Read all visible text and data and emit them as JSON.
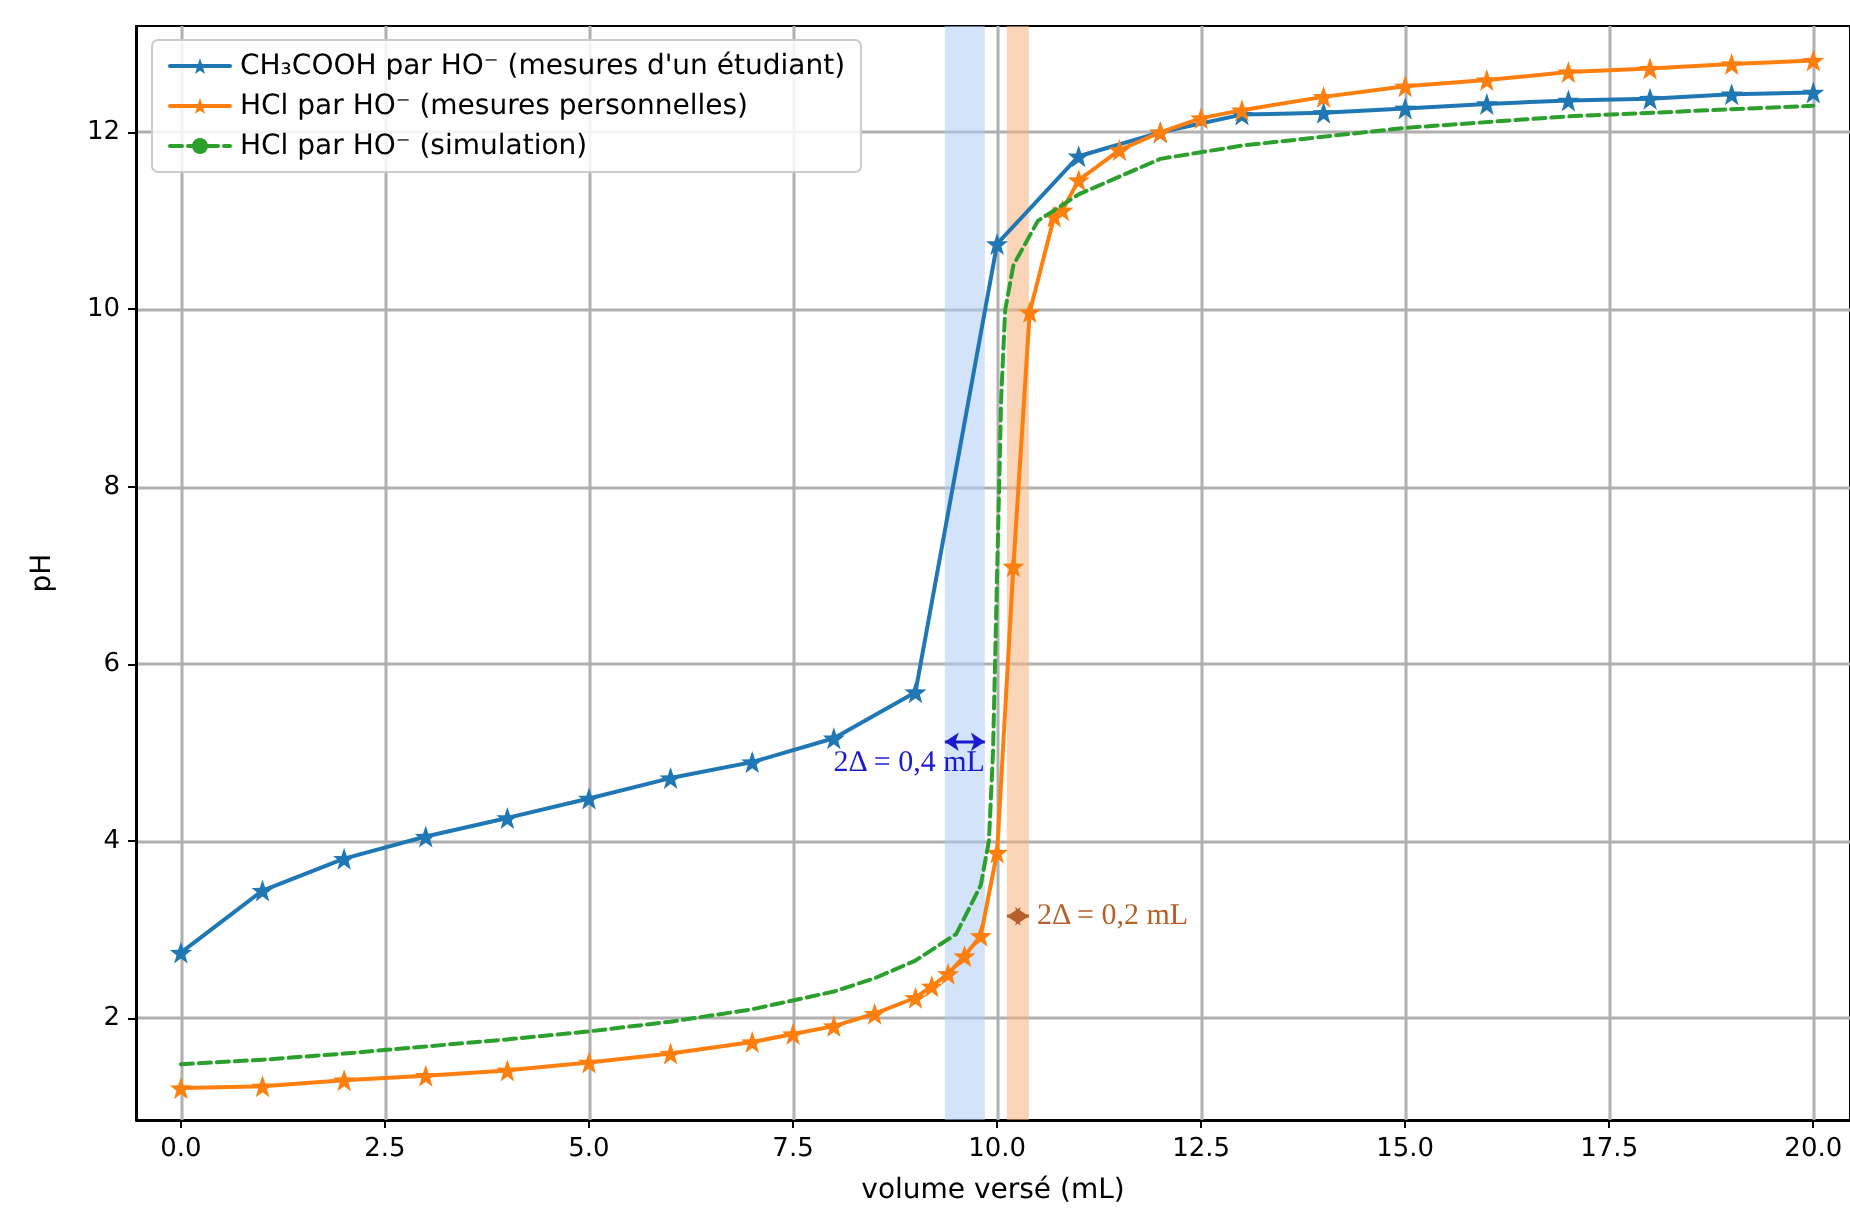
{
  "chart_data": {
    "type": "line",
    "xlabel": "volume versé (mL)",
    "ylabel": "pH",
    "xlim": [
      -0.55,
      20.45
    ],
    "ylim": [
      0.85,
      13.2
    ],
    "xticks": [
      {
        "value": 0,
        "label": "0.0"
      },
      {
        "value": 2.5,
        "label": "2.5"
      },
      {
        "value": 5,
        "label": "5.0"
      },
      {
        "value": 7.5,
        "label": "7.5"
      },
      {
        "value": 10,
        "label": "10.0"
      },
      {
        "value": 12.5,
        "label": "12.5"
      },
      {
        "value": 15,
        "label": "15.0"
      },
      {
        "value": 17.5,
        "label": "17.5"
      },
      {
        "value": 20,
        "label": "20.0"
      }
    ],
    "yticks": [
      2,
      4,
      6,
      8,
      10,
      12
    ],
    "grid": true,
    "legend": "top left",
    "marker": "star",
    "line_style": "solid",
    "series": [
      {
        "name": "CH₃COOH par HO⁻ (mesures d'un étudiant)",
        "color": "#1f77b4",
        "x": [
          0,
          1,
          2,
          3,
          4,
          5,
          6,
          7,
          8,
          9,
          10,
          11,
          12,
          13,
          14,
          15,
          16,
          17,
          18,
          19,
          20
        ],
        "values": [
          2.74,
          3.44,
          3.8,
          4.05,
          4.26,
          4.48,
          4.71,
          4.89,
          5.16,
          5.68,
          10.74,
          11.73,
          12.0,
          12.2,
          12.22,
          12.27,
          12.32,
          12.36,
          12.38,
          12.43,
          12.45
        ]
      },
      {
        "name": "HCl par HO⁻ (mesures personnelles)",
        "color": "#ff7f0e",
        "x": [
          0,
          1,
          2,
          3,
          4,
          5,
          6,
          7,
          7.5,
          8,
          8.5,
          9,
          9.2,
          9.4,
          9.6,
          9.8,
          10,
          10.2,
          10.4,
          10.7,
          10.8,
          11,
          11.5,
          12,
          12.5,
          13,
          14,
          15,
          16,
          17,
          18,
          19,
          20
        ],
        "values": [
          1.21,
          1.23,
          1.3,
          1.35,
          1.41,
          1.5,
          1.6,
          1.73,
          1.82,
          1.91,
          2.05,
          2.23,
          2.36,
          2.5,
          2.7,
          2.93,
          3.87,
          7.1,
          9.97,
          11.05,
          11.12,
          11.46,
          11.8,
          12.0,
          12.16,
          12.25,
          12.4,
          12.52,
          12.59,
          12.68,
          12.72,
          12.77,
          12.81
        ]
      },
      {
        "name": "HCl par HO⁻ (simulation)",
        "color": "#2ca02c",
        "marker": "none",
        "line_style": "dashed",
        "x": [
          0,
          1,
          2,
          3,
          4,
          5,
          6,
          7,
          8,
          8.5,
          9,
          9.5,
          9.8,
          9.9,
          9.95,
          10,
          10.05,
          10.1,
          10.2,
          10.5,
          11,
          12,
          13,
          15,
          17,
          20
        ],
        "values": [
          1.48,
          1.53,
          1.6,
          1.68,
          1.76,
          1.85,
          1.96,
          2.1,
          2.3,
          2.45,
          2.65,
          2.95,
          3.5,
          4.0,
          5.0,
          7.0,
          9.0,
          10.0,
          10.5,
          11.0,
          11.3,
          11.7,
          11.85,
          12.05,
          12.18,
          12.3
        ]
      }
    ],
    "bands": [
      {
        "axis": "x",
        "from": 9.36,
        "to": 9.85,
        "color": "#aeccf5"
      },
      {
        "axis": "x",
        "from": 10.12,
        "to": 10.39,
        "color": "#f8b27c"
      }
    ],
    "annotations": [
      {
        "text": "2Δ = 0,4 mL",
        "x": 9.85,
        "y": 5.12
      },
      {
        "text": "2Δ = 0,2 mL",
        "x": 10.39,
        "y": 3.15
      }
    ]
  }
}
